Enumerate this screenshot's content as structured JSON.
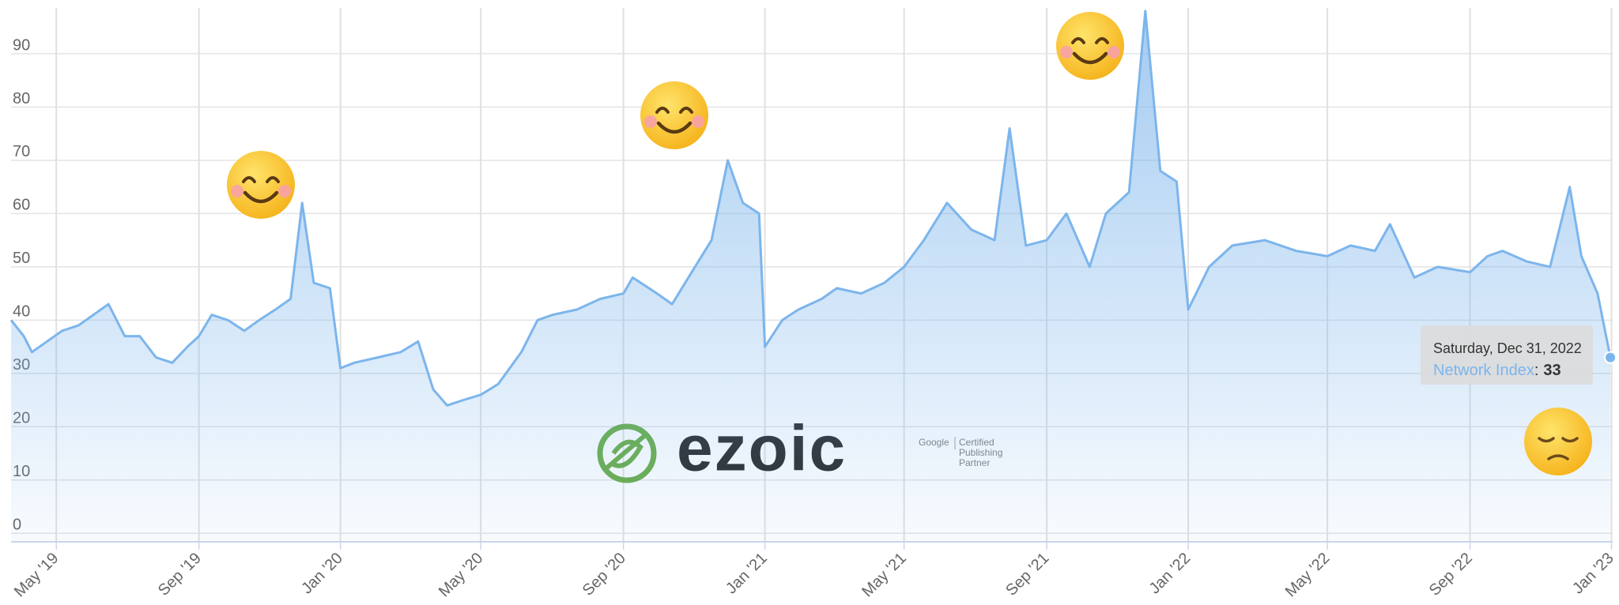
{
  "chart_data": {
    "type": "area",
    "x": [
      "2019-03-23",
      "2019-04-03",
      "2019-04-10",
      "2019-04-23",
      "2019-05-06",
      "2019-05-20",
      "2019-06-02",
      "2019-06-15",
      "2019-06-29",
      "2019-07-12",
      "2019-07-26",
      "2019-08-09",
      "2019-08-22",
      "2019-09-01",
      "2019-09-12",
      "2019-09-26",
      "2019-10-10",
      "2019-10-23",
      "2019-11-06",
      "2019-11-19",
      "2019-11-29",
      "2019-12-09",
      "2019-12-23",
      "2020-01-01",
      "2020-01-13",
      "2020-02-02",
      "2020-02-22",
      "2020-03-08",
      "2020-03-21",
      "2020-04-02",
      "2020-04-16",
      "2020-05-01",
      "2020-05-16",
      "2020-06-05",
      "2020-06-19",
      "2020-07-02",
      "2020-07-23",
      "2020-08-12",
      "2020-09-01",
      "2020-09-09",
      "2020-09-30",
      "2020-10-13",
      "2020-10-27",
      "2020-11-16",
      "2020-11-30",
      "2020-12-13",
      "2020-12-27",
      "2021-01-01",
      "2021-01-16",
      "2021-01-30",
      "2021-02-19",
      "2021-03-04",
      "2021-03-25",
      "2021-04-14",
      "2021-05-01",
      "2021-05-18",
      "2021-06-07",
      "2021-06-28",
      "2021-07-18",
      "2021-07-31",
      "2021-08-14",
      "2021-09-01",
      "2021-09-18",
      "2021-10-08",
      "2021-10-22",
      "2021-11-11",
      "2021-11-25",
      "2021-12-08",
      "2021-12-22",
      "2022-01-01",
      "2022-01-19",
      "2022-02-08",
      "2022-03-08",
      "2022-04-04",
      "2022-05-01",
      "2022-05-21",
      "2022-06-11",
      "2022-06-24",
      "2022-07-15",
      "2022-08-04",
      "2022-09-01",
      "2022-09-16",
      "2022-09-29",
      "2022-10-20",
      "2022-11-09",
      "2022-11-26",
      "2022-12-06",
      "2022-12-20",
      "2022-12-31"
    ],
    "series": [
      {
        "name": "Network Index",
        "color": "#7cb5ec",
        "values": [
          40,
          37,
          34,
          36,
          38,
          39,
          41,
          43,
          37,
          37,
          33,
          32,
          35,
          37,
          41,
          40,
          38,
          40,
          42,
          44,
          62,
          47,
          46,
          31,
          32,
          33,
          34,
          36,
          27,
          24,
          25,
          26,
          28,
          34,
          40,
          41,
          42,
          44,
          45,
          48,
          45,
          43,
          48,
          55,
          70,
          62,
          60,
          35,
          40,
          42,
          44,
          46,
          45,
          47,
          50,
          55,
          62,
          57,
          55,
          76,
          54,
          55,
          60,
          50,
          60,
          64,
          98,
          68,
          66,
          42,
          50,
          54,
          55,
          53,
          52,
          54,
          53,
          58,
          48,
          50,
          49,
          52,
          53,
          51,
          50,
          65,
          52,
          45,
          33
        ]
      }
    ],
    "xlim": [
      "2019-03-23",
      "2023-01-02"
    ],
    "xticks": [
      {
        "value": "2019-05-01",
        "label": "May '19"
      },
      {
        "value": "2019-09-01",
        "label": "Sep '19"
      },
      {
        "value": "2020-01-01",
        "label": "Jan '20"
      },
      {
        "value": "2020-05-01",
        "label": "May '20"
      },
      {
        "value": "2020-09-01",
        "label": "Sep '20"
      },
      {
        "value": "2021-01-01",
        "label": "Jan '21"
      },
      {
        "value": "2021-05-01",
        "label": "May '21"
      },
      {
        "value": "2021-09-01",
        "label": "Sep '21"
      },
      {
        "value": "2022-01-01",
        "label": "Jan '22"
      },
      {
        "value": "2022-05-01",
        "label": "May '22"
      },
      {
        "value": "2022-09-01",
        "label": "Sep '22"
      },
      {
        "value": "2023-01-01",
        "label": "Jan '23"
      }
    ],
    "ylim": [
      -1.6,
      98.6
    ],
    "yticks": [
      0,
      10,
      20,
      30,
      40,
      50,
      60,
      70,
      80,
      90
    ],
    "grid": true,
    "tooltip": {
      "date": "Saturday, Dec 31, 2022",
      "separator": ":"
    },
    "watermark": {
      "brand": "ezoic",
      "google": "Google",
      "badge": [
        "Certified",
        "Publishing",
        "Partner"
      ]
    }
  }
}
